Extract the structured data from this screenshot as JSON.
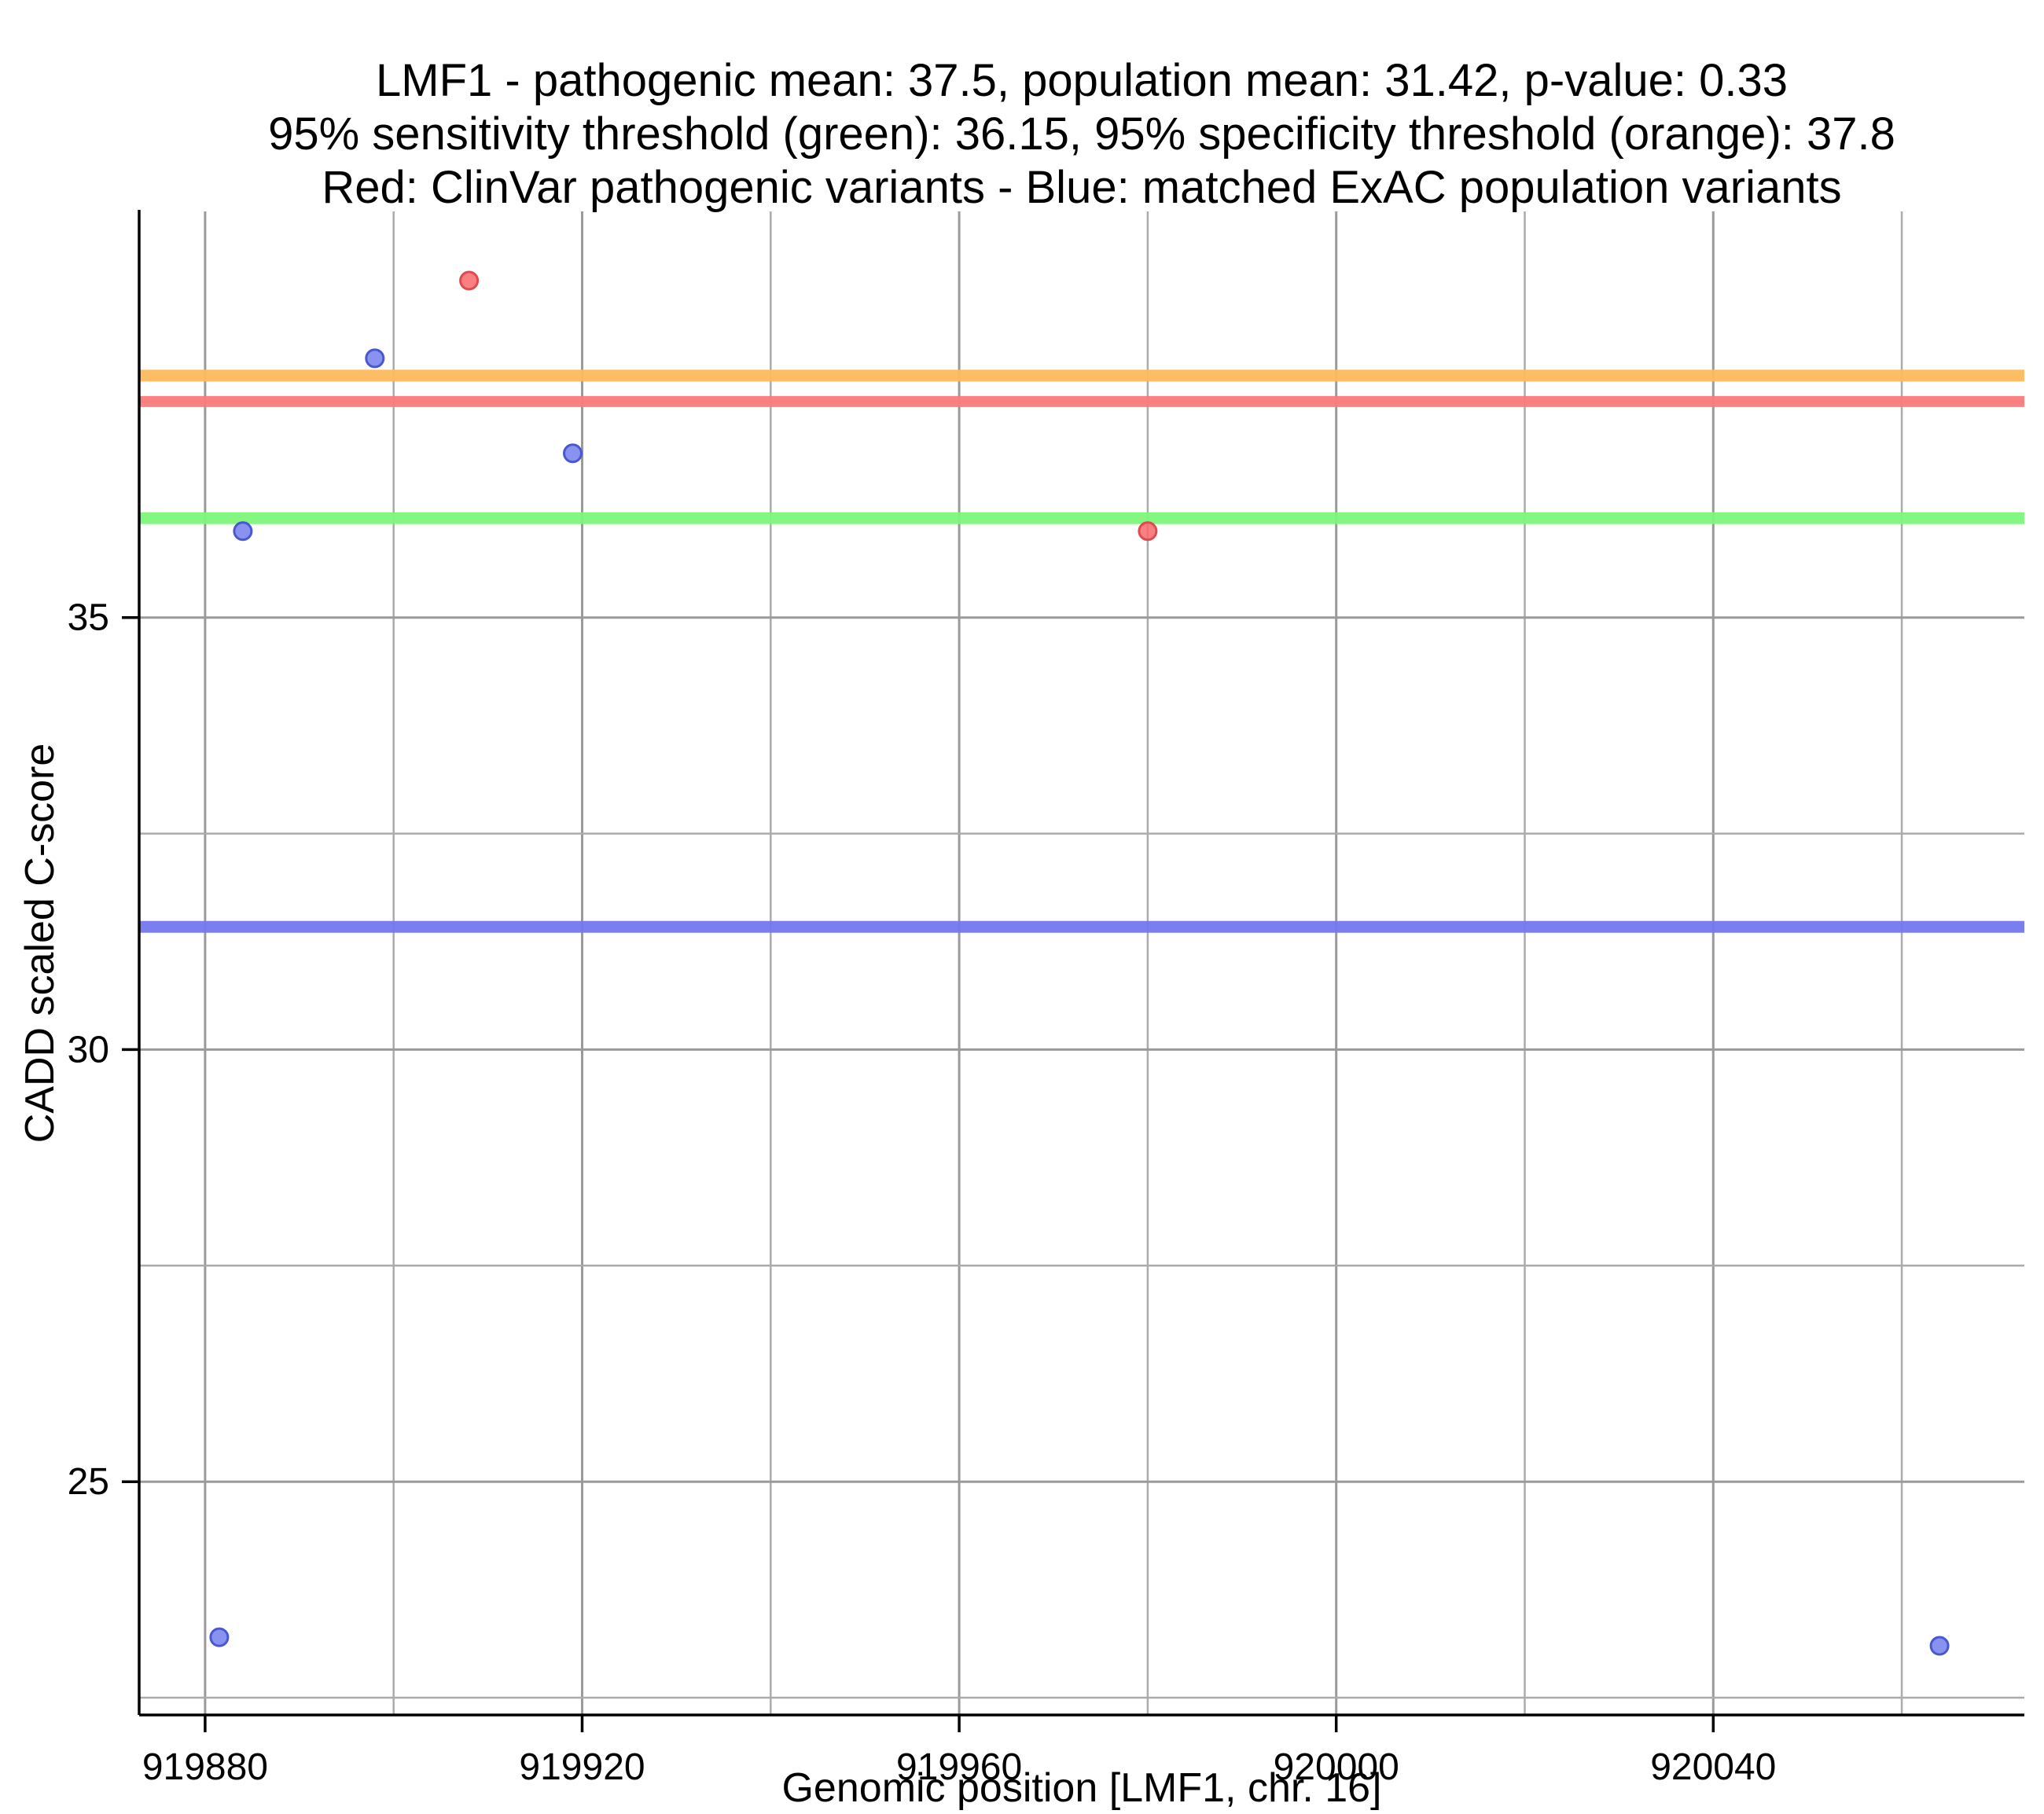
{
  "title": {
    "lines": [
      "LMF1 - pathogenic mean: 37.5, population mean: 31.42, p-value: 0.33",
      "95% sensitivity threshold (green): 36.15, 95% specificity threshold (orange): 37.8",
      "Red: ClinVar pathogenic variants - Blue: matched ExAC population variants"
    ]
  },
  "chart_data": {
    "type": "scatter",
    "xlabel": "Genomic position [LMF1, chr. 16]",
    "ylabel": "CADD scaled C-score",
    "xlim": [
      919873,
      920073
    ],
    "ylim": [
      22.3,
      39.7
    ],
    "x_tick_values": [
      919880,
      919920,
      919960,
      920000,
      920040
    ],
    "x_tick_labels": [
      "919880",
      "919920",
      "919960",
      "920000",
      "920040"
    ],
    "y_tick_values": [
      25,
      30,
      35
    ],
    "y_tick_labels": [
      "25",
      "30",
      "35"
    ],
    "x_minor_step": 20,
    "y_minor_step": 2.5,
    "grid": {
      "major_color": "#9A9A9A",
      "minor_color": "#ABABAB"
    },
    "axis_color": "#000000",
    "hlines": [
      {
        "name": "specificity-threshold",
        "label": "95% specificity threshold (orange)",
        "y": 37.8,
        "color": "#FDB95C",
        "width": 15
      },
      {
        "name": "pathogenic-mean",
        "label": "pathogenic mean (red)",
        "y": 37.5,
        "color": "#F97B7B",
        "width": 14
      },
      {
        "name": "sensitivity-threshold",
        "label": "95% sensitivity threshold (green)",
        "y": 36.15,
        "color": "#7DF77B",
        "width": 15
      },
      {
        "name": "population-mean",
        "label": "population mean (blue)",
        "y": 31.42,
        "color": "#7377EE",
        "width": 15
      }
    ],
    "series": [
      {
        "name": "clinvar-pathogenic",
        "label": "ClinVar pathogenic variants",
        "fill": "#F8696B",
        "stroke": "#DD4B4E",
        "points": [
          {
            "x": 919908,
            "y": 38.9
          },
          {
            "x": 919980,
            "y": 36.0
          }
        ]
      },
      {
        "name": "exac-population",
        "label": "matched ExAC population variants",
        "fill": "#7280EC",
        "stroke": "#4A57D2",
        "points": [
          {
            "x": 919898,
            "y": 38.0
          },
          {
            "x": 919919,
            "y": 36.9
          },
          {
            "x": 919884,
            "y": 36.0
          },
          {
            "x": 919881.5,
            "y": 23.2
          },
          {
            "x": 920064,
            "y": 23.1
          }
        ]
      }
    ],
    "stats": {
      "gene": "LMF1",
      "chromosome": "16",
      "pathogenic_mean": 37.5,
      "population_mean": 31.42,
      "p_value": 0.33,
      "sensitivity_threshold_95": 36.15,
      "specificity_threshold_95": 37.8
    }
  }
}
